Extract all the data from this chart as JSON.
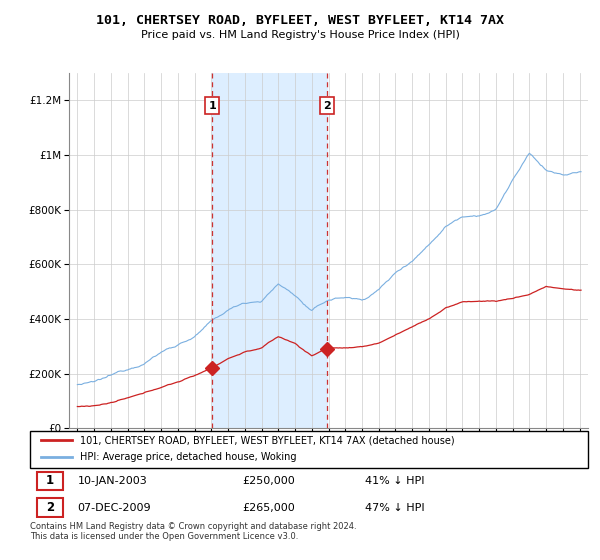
{
  "title": "101, CHERTSEY ROAD, BYFLEET, WEST BYFLEET, KT14 7AX",
  "subtitle": "Price paid vs. HM Land Registry's House Price Index (HPI)",
  "legend_line1": "101, CHERTSEY ROAD, BYFLEET, WEST BYFLEET, KT14 7AX (detached house)",
  "legend_line2": "HPI: Average price, detached house, Woking",
  "transaction1_date": "10-JAN-2003",
  "transaction1_price": "£250,000",
  "transaction1_hpi": "41% ↓ HPI",
  "transaction1_year": 2003.05,
  "transaction1_value": 250000,
  "transaction2_date": "07-DEC-2009",
  "transaction2_price": "£265,000",
  "transaction2_hpi": "47% ↓ HPI",
  "transaction2_year": 2009.92,
  "transaction2_value": 265000,
  "footer": "Contains HM Land Registry data © Crown copyright and database right 2024.\nThis data is licensed under the Open Government Licence v3.0.",
  "hpi_color": "#7aafe0",
  "house_color": "#cc2222",
  "shade_color": "#ddeeff",
  "marker_box_color": "#cc2222",
  "ylim": [
    0,
    1300000
  ],
  "xlim_start": 1994.5,
  "xlim_end": 2025.5
}
